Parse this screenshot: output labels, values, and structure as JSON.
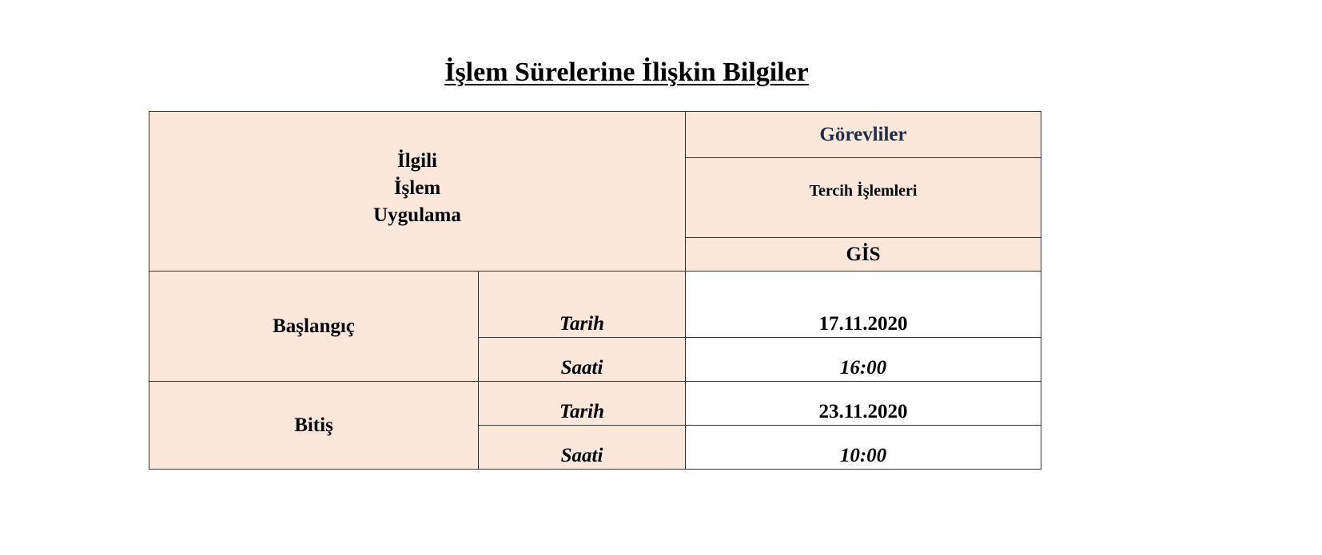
{
  "title": "İşlem Sürelerine İlişkin Bilgiler",
  "header": {
    "left_lines": [
      "İlgili",
      "İşlem",
      "Uygulama"
    ],
    "staff_label": "Görevliler",
    "operation": "Tercih İşlemleri",
    "unit": "GİS"
  },
  "colors": {
    "header_bg": "#fce8da",
    "staff_text": "#1f2d4d",
    "border": "#333333"
  },
  "rows": [
    {
      "label": "Başlangıç",
      "date_label": "Tarih",
      "date": "17.11.2020",
      "time_label": "Saati",
      "time": "16:00"
    },
    {
      "label": "Bitiş",
      "date_label": "Tarih",
      "date": "23.11.2020",
      "time_label": "Saati",
      "time": "10:00"
    }
  ]
}
